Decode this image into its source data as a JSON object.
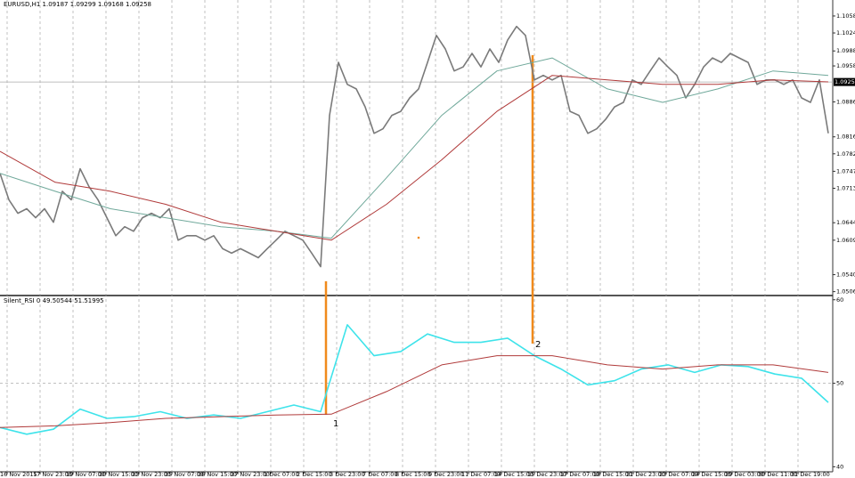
{
  "chart_data": [
    {
      "type": "line",
      "title": "EURUSD,H1  1.09187 1.09299 1.09168 1.09258",
      "ylim": [
        1.05,
        1.109
      ],
      "yticks": [
        {
          "value": 1.1058,
          "label": "1.10580"
        },
        {
          "value": 1.1024,
          "label": "1.10240"
        },
        {
          "value": 1.0988,
          "label": "1.09880"
        },
        {
          "value": 1.0958,
          "label": "1.09580"
        },
        {
          "value": 1.0886,
          "label": "1.08860"
        },
        {
          "value": 1.0816,
          "label": "1.08160"
        },
        {
          "value": 1.0782,
          "label": "1.07820"
        },
        {
          "value": 1.0747,
          "label": "1.07470"
        },
        {
          "value": 1.0713,
          "label": "1.07130"
        },
        {
          "value": 1.0644,
          "label": "1.06440"
        },
        {
          "value": 1.0609,
          "label": "1.06090"
        },
        {
          "value": 1.054,
          "label": "1.05400"
        },
        {
          "value": 1.0506,
          "label": "1.05060"
        }
      ],
      "grid": true,
      "current_price": {
        "value": 1.09258,
        "label": "1.09258"
      },
      "series": [
        {
          "color": "#7a7a7a",
          "values": [
            1.0743,
            1.069,
            1.0663,
            1.0672,
            1.0654,
            1.0672,
            1.0645,
            1.0707,
            1.069,
            1.0752,
            1.0716,
            1.069,
            1.0654,
            1.0618,
            1.0636,
            1.0627,
            1.0654,
            1.0663,
            1.0654,
            1.0672,
            1.0609,
            1.0618,
            1.0618,
            1.0609,
            1.0618,
            1.0592,
            1.0583,
            1.0592,
            1.0583,
            1.0574,
            1.0592,
            1.0609,
            1.0627,
            1.0618,
            1.0609,
            1.0583,
            1.0556,
            1.0859,
            1.0965,
            1.0921,
            1.0912,
            1.0876,
            1.0823,
            1.0832,
            1.0859,
            1.0867,
            1.0894,
            1.0912,
            1.0965,
            1.1019,
            1.0992,
            1.0948,
            1.0956,
            1.0983,
            1.0956,
            1.0992,
            1.0965,
            1.101,
            1.1037,
            1.1019,
            1.093,
            1.0939,
            1.093,
            1.0939,
            1.0867,
            1.0859,
            1.0823,
            1.0832,
            1.0851,
            1.0876,
            1.0885,
            1.093,
            1.0921,
            1.0948,
            1.0974,
            1.0956,
            1.0939,
            1.0894,
            1.0921,
            1.0956,
            1.0974,
            1.0965,
            1.0983,
            1.0974,
            1.0965,
            1.0921,
            1.093,
            1.093,
            1.0921,
            1.093,
            1.0894,
            1.0885,
            1.093,
            1.0823
          ]
        },
        {
          "color": "#6fa89a",
          "values": [
            1.0743,
            1.0707,
            1.0672,
            1.0654,
            1.0636,
            1.0627,
            1.0613,
            1.0734,
            1.0859,
            1.0948,
            1.0974,
            1.0912,
            1.0885,
            1.0912,
            1.0948,
            1.0939
          ]
        },
        {
          "color": "#b03a3a",
          "values": [
            1.0787,
            1.0725,
            1.0707,
            1.0681,
            1.0645,
            1.0627,
            1.0609,
            1.0681,
            1.077,
            1.0867,
            1.0939,
            1.093,
            1.0921,
            1.0921,
            1.093,
            1.0926
          ]
        }
      ]
    },
    {
      "type": "line",
      "title": "Silent_RSI 0 49.50544 51.51995",
      "ylim": [
        39.4,
        60.4
      ],
      "yticks": [
        40,
        50,
        60
      ],
      "level": 50,
      "series": [
        {
          "color": "#3ee3ea",
          "values": [
            44.7,
            43.9,
            44.5,
            46.9,
            45.8,
            46.0,
            46.6,
            45.8,
            46.2,
            45.8,
            46.6,
            47.4,
            46.6,
            57.0,
            53.3,
            53.8,
            55.9,
            54.9,
            54.9,
            55.4,
            53.3,
            51.7,
            49.8,
            50.3,
            51.7,
            52.2,
            51.3,
            52.2,
            52.0,
            51.1,
            50.6,
            47.7
          ]
        },
        {
          "color": "#b03a3a",
          "values": [
            44.7,
            44.9,
            45.3,
            45.8,
            46.0,
            46.2,
            46.3,
            49.0,
            52.2,
            53.3,
            53.3,
            52.2,
            51.7,
            52.2,
            52.2,
            51.3
          ]
        }
      ],
      "annotations": [
        "1",
        "2"
      ],
      "time_labels": [
        "16 Nov 2015",
        "17 Nov 23:00",
        "19 Nov 07:00",
        "20 Nov 15:00",
        "23 Nov 23:00",
        "25 Nov 07:00",
        "26 Nov 15:00",
        "27 Nov 23:00",
        "1 Dec 07:00",
        "2 Dec 15:00",
        "3 Dec 23:00",
        "7 Dec 07:00",
        "8 Dec 15:00",
        "9 Dec 23:00",
        "11 Dec 07:00",
        "14 Dec 15:00",
        "15 Dec 23:00",
        "17 Dec 07:00",
        "18 Dec 15:00",
        "21 Dec 23:00",
        "23 Dec 07:00",
        "24 Dec 15:00",
        "29 Dec 03:00",
        "30 Dec 11:00",
        "31 Dec 19:00"
      ]
    }
  ]
}
